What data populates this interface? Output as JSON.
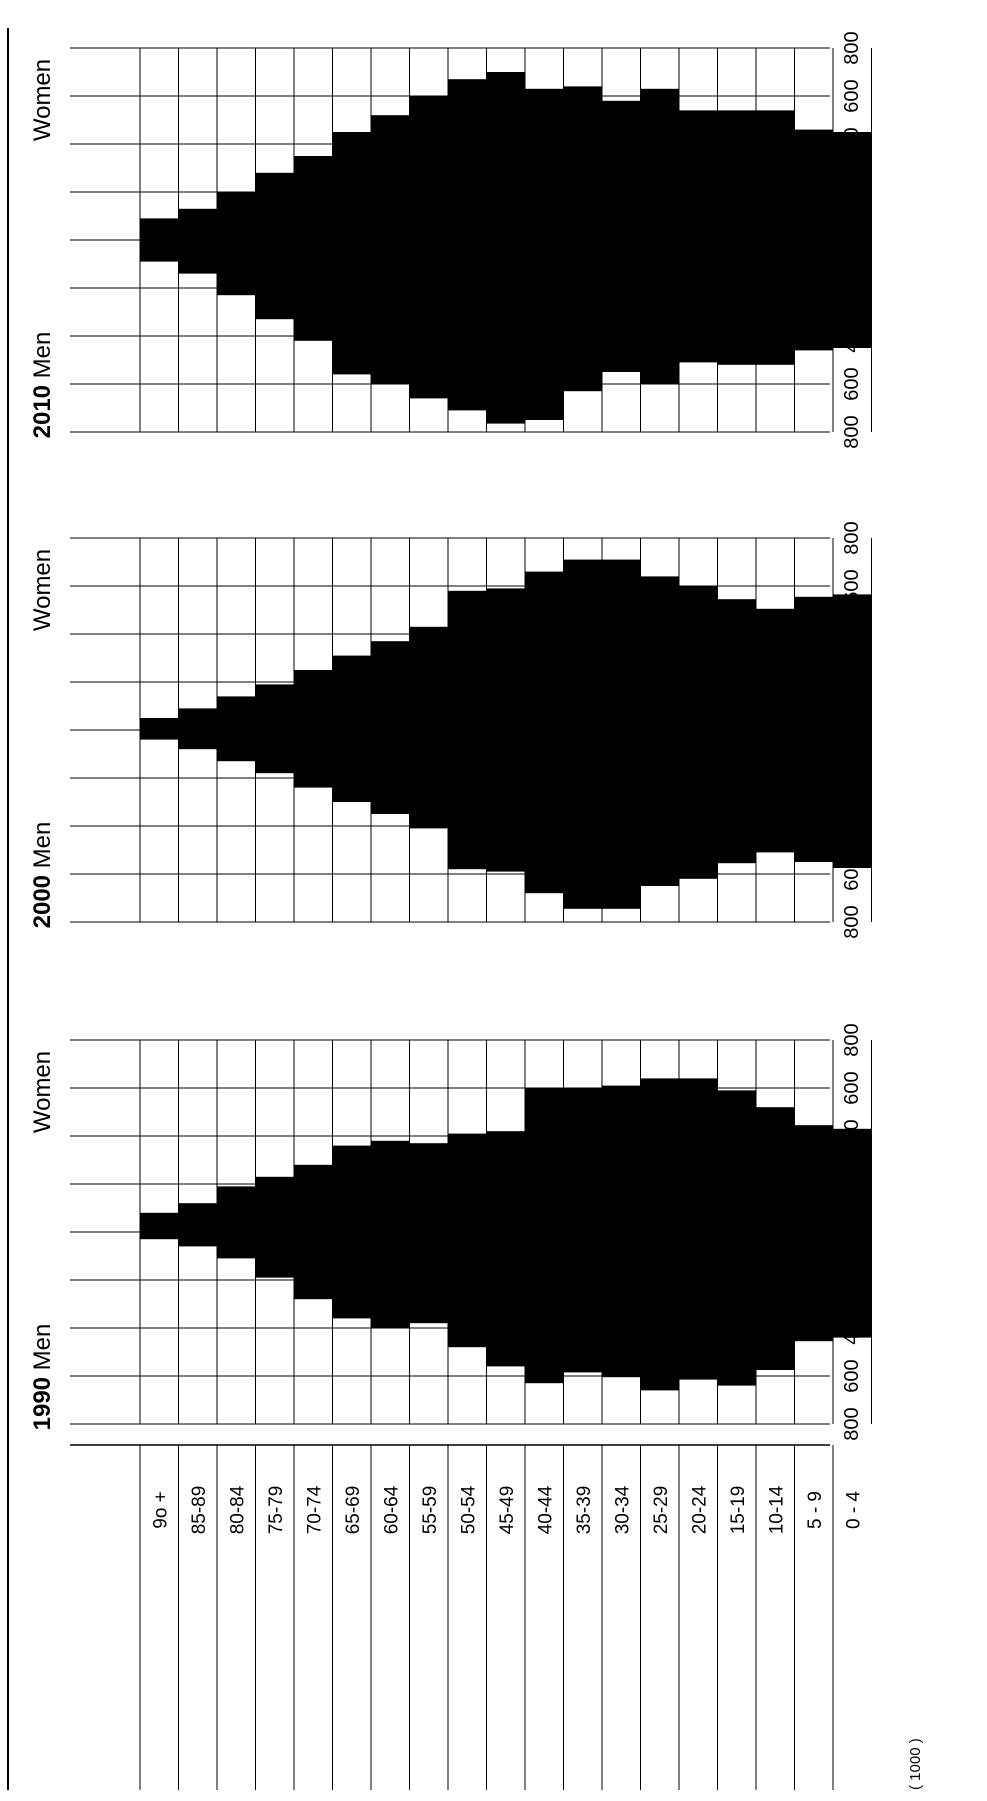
{
  "chart_data": {
    "type": "bar",
    "subtype": "population-pyramid",
    "orientation": "rotated",
    "unit_label": "( 1000 )",
    "age_groups": [
      "0 - 4",
      "5 - 9",
      "10-14",
      "15-19",
      "20-24",
      "25-29",
      "30-34",
      "35-39",
      "40-44",
      "45-49",
      "50-54",
      "55-59",
      "60-64",
      "65-69",
      "70-74",
      "75-79",
      "80-84",
      "85-89",
      "9o +"
    ],
    "axis_ticks": [
      "800",
      "600",
      "400",
      "200",
      "0",
      "200",
      "400",
      "600",
      "800"
    ],
    "xlim": [
      -800,
      800
    ],
    "grid": true,
    "panels": [
      {
        "year": "1990",
        "men_label": "Men",
        "women_label": "Women",
        "men": [
          440,
          455,
          575,
          640,
          615,
          660,
          605,
          585,
          630,
          560,
          480,
          380,
          400,
          360,
          280,
          190,
          110,
          60,
          30
        ],
        "women": [
          430,
          445,
          520,
          590,
          640,
          640,
          610,
          600,
          600,
          420,
          410,
          370,
          380,
          360,
          280,
          230,
          190,
          120,
          80
        ]
      },
      {
        "year": "2000",
        "men_label": "Men",
        "women_label": "Women",
        "men": [
          575,
          550,
          510,
          555,
          620,
          650,
          745,
          745,
          680,
          590,
          580,
          410,
          350,
          300,
          240,
          180,
          130,
          80,
          40
        ],
        "women": [
          565,
          555,
          505,
          545,
          600,
          640,
          710,
          710,
          660,
          590,
          580,
          430,
          370,
          310,
          250,
          190,
          140,
          90,
          50
        ]
      },
      {
        "year": "2010",
        "men_label": "Men",
        "women_label": "Women",
        "men": [
          450,
          460,
          520,
          520,
          510,
          600,
          550,
          630,
          750,
          765,
          710,
          660,
          600,
          560,
          420,
          330,
          230,
          140,
          90
        ],
        "women": [
          450,
          460,
          540,
          540,
          540,
          630,
          580,
          640,
          630,
          700,
          670,
          600,
          520,
          450,
          350,
          280,
          200,
          130,
          90
        ]
      }
    ]
  },
  "colors": {
    "bar": "#000000",
    "grid": "#000000",
    "background": "#ffffff"
  }
}
